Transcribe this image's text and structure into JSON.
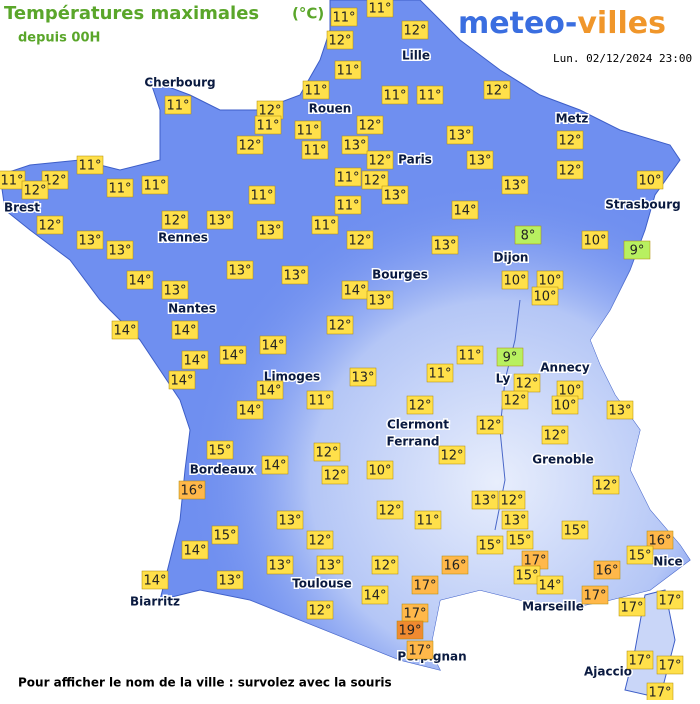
{
  "header": {
    "title": "Températures maximales",
    "unit": "(°C)",
    "subtitle": "depuis 00H",
    "logo_part1": "meteo-",
    "logo_part2": "villes",
    "timestamp": "Lun. 02/12/2024 23:00"
  },
  "cities": [
    "Cherbourg",
    "Rouen",
    "Lille",
    "Paris",
    "Metz",
    "Strasbourg",
    "Brest",
    "Rennes",
    "Dijon",
    "Nantes",
    "Bourges",
    "Limoges",
    "Annecy",
    "Ly",
    "Clermont",
    "Ferrand",
    "Grenoble",
    "Bordeaux",
    "Toulouse",
    "Biarritz",
    "Marseille",
    "Nice",
    "Perpignan",
    "Ajaccio"
  ],
  "temperatures": [
    "11°",
    "11°",
    "12°",
    "12°",
    "11°",
    "11°",
    "12°",
    "11°",
    "11°",
    "11°",
    "11°",
    "12°",
    "11°",
    "12°",
    "13°",
    "12°",
    "12°",
    "11°",
    "13°",
    "12°",
    "13°",
    "12°",
    "11°",
    "12°",
    "11°",
    "12°",
    "11°",
    "11°",
    "11°",
    "12°",
    "13°",
    "10°",
    "11°",
    "13°",
    "11°",
    "14°",
    "12°",
    "12°",
    "13°",
    "13°",
    "11°",
    "13°",
    "13°",
    "12°",
    "13°",
    "8°",
    "10°",
    "9°",
    "13°",
    "13°",
    "14°",
    "13°",
    "14°",
    "13°",
    "10°",
    "10°",
    "10°",
    "14°",
    "14°",
    "12°",
    "14°",
    "14°",
    "14°",
    "14°",
    "11°",
    "9°",
    "13°",
    "11°",
    "12°",
    "10°",
    "14°",
    "14°",
    "11°",
    "12°",
    "12°",
    "10°",
    "13°",
    "12°",
    "12°",
    "15°",
    "12°",
    "12°",
    "14°",
    "10°",
    "12°",
    "16°",
    "12°",
    "13°",
    "12°",
    "12°",
    "11°",
    "13°",
    "13°",
    "15°",
    "12°",
    "15°",
    "15°",
    "15°",
    "16°",
    "15°",
    "14°",
    "13°",
    "13°",
    "12°",
    "16°",
    "17°",
    "15°",
    "16°",
    "14°",
    "13°",
    "17°",
    "14°",
    "14°",
    "17°",
    "17°",
    "17°",
    "12°",
    "17°",
    "19°",
    "17°",
    "17°",
    "17°",
    "17°"
  ],
  "footer": "Pour afficher le nom de la ville : survolez avec la souris"
}
